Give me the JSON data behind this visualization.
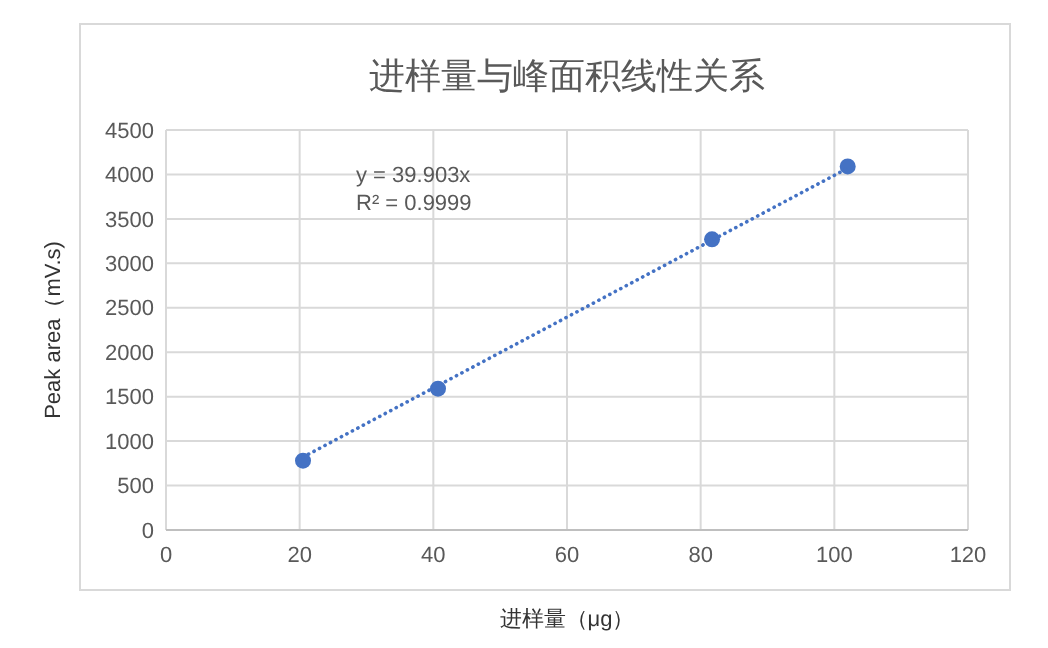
{
  "chart_data": {
    "type": "scatter",
    "title": "进样量与峰面积线性关系",
    "xlabel": "进样量（μg）",
    "ylabel": "Peak area（mV.s)",
    "series": [
      {
        "color": "#4472c4",
        "x": [
          20.5,
          40.7,
          81.7,
          102.0
        ],
        "values": [
          780,
          1590,
          3270,
          4090
        ],
        "marker": "circle"
      },
      {
        "type": "line",
        "color": "#4472c4",
        "x": [
          20.5,
          102.0
        ],
        "values": [
          820,
          4070
        ],
        "line_style": "dotted",
        "marker": "none"
      }
    ],
    "annotations": [
      "y = 39.903x",
      "R² = 0.9999"
    ],
    "xlim": [
      0,
      120
    ],
    "xticks": [
      0,
      20,
      40,
      60,
      80,
      100,
      120
    ],
    "ylim": [
      0,
      4500
    ],
    "yticks": [
      0,
      500,
      1000,
      1500,
      2000,
      2500,
      3000,
      3500,
      4000,
      4500
    ],
    "grid": true
  }
}
